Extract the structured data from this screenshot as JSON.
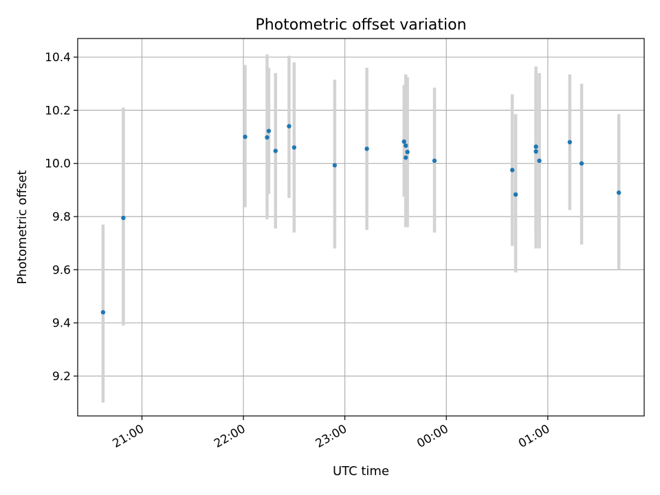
{
  "chart_data": {
    "type": "scatter",
    "title": "Photometric offset variation",
    "xlabel": "UTC time",
    "ylabel": "Photometric offset",
    "x_unit": "UTC time (HH:MM, night spanning midnight)",
    "xlim": [
      "20:22",
      "01:57"
    ],
    "ylim": [
      9.05,
      10.47
    ],
    "x_ticks": [
      "21:00",
      "22:00",
      "23:00",
      "00:00",
      "01:00"
    ],
    "y_ticks": [
      9.2,
      9.4,
      9.6,
      9.8,
      10.0,
      10.2,
      10.4
    ],
    "grid": true,
    "point_color": "#1f77b4",
    "errorbar_color": "#d3d3d3",
    "series": [
      {
        "x": [
          "20:37",
          "20:49",
          "22:01",
          "22:14",
          "22:15",
          "22:19",
          "22:27",
          "22:30",
          "22:54",
          "23:13",
          "23:35",
          "23:36",
          "23:36",
          "23:37",
          "23:53",
          "00:39",
          "00:41",
          "00:53",
          "00:53",
          "00:55",
          "01:13",
          "01:20",
          "01:42"
        ],
        "y": [
          9.44,
          9.795,
          10.1,
          10.098,
          10.122,
          10.047,
          10.14,
          10.06,
          9.993,
          10.055,
          10.082,
          10.022,
          10.067,
          10.043,
          10.01,
          9.975,
          9.883,
          10.063,
          10.045,
          10.01,
          10.08,
          10.0,
          9.89
        ],
        "err_low": [
          9.1,
          9.39,
          9.835,
          9.79,
          9.885,
          9.755,
          9.87,
          9.74,
          9.68,
          9.75,
          9.875,
          9.8,
          9.76,
          9.76,
          9.74,
          9.69,
          9.59,
          9.725,
          9.68,
          9.68,
          9.825,
          9.695,
          9.6
        ],
        "err_high": [
          9.77,
          10.21,
          10.37,
          10.41,
          10.36,
          10.34,
          10.405,
          10.38,
          10.315,
          10.36,
          10.295,
          10.335,
          10.33,
          10.325,
          10.285,
          10.26,
          10.185,
          10.365,
          10.34,
          10.34,
          10.335,
          10.3,
          10.185
        ]
      }
    ]
  }
}
